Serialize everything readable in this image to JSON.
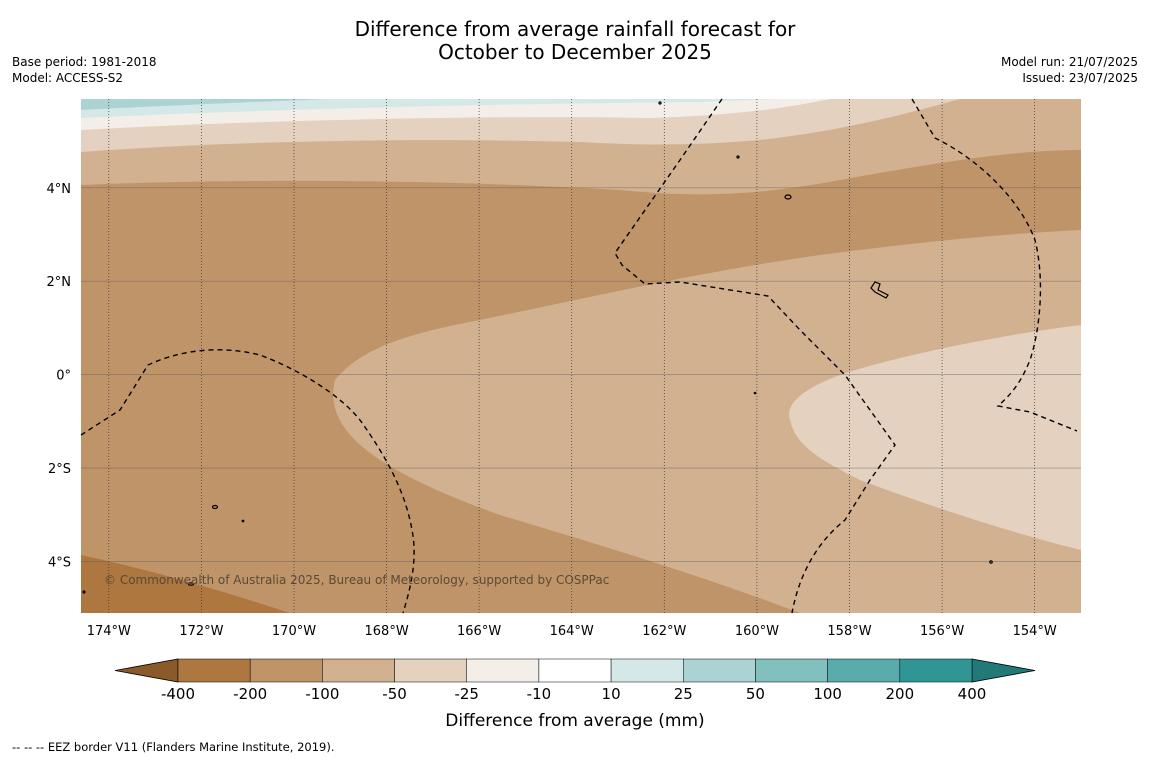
{
  "header": {
    "title_line1": "Difference from average rainfall forecast for",
    "title_line2": "October to December 2025",
    "base_period": "Base period: 1981-2018",
    "model": "Model: ACCESS-S2",
    "model_run": "Model run: 21/07/2025",
    "issued": "Issued: 23/07/2025"
  },
  "map": {
    "lon_range": [
      -174.6,
      -153.0
    ],
    "lat_range": [
      -5.1,
      5.9
    ],
    "lon_ticks": [
      {
        "v": -174,
        "label": "174°W"
      },
      {
        "v": -172,
        "label": "172°W"
      },
      {
        "v": -170,
        "label": "170°W"
      },
      {
        "v": -168,
        "label": "168°W"
      },
      {
        "v": -166,
        "label": "166°W"
      },
      {
        "v": -164,
        "label": "164°W"
      },
      {
        "v": -162,
        "label": "162°W"
      },
      {
        "v": -160,
        "label": "160°W"
      },
      {
        "v": -158,
        "label": "158°W"
      },
      {
        "v": -156,
        "label": "156°W"
      },
      {
        "v": -154,
        "label": "154°W"
      }
    ],
    "lat_ticks": [
      {
        "v": 4,
        "label": "4°N"
      },
      {
        "v": 2,
        "label": "2°N"
      },
      {
        "v": 0,
        "label": "0°"
      },
      {
        "v": -2,
        "label": "2°S"
      },
      {
        "v": -4,
        "label": "4°S"
      }
    ],
    "copyright": "© Commonwealth of Australia 2025, Bureau of Meteorology, supported by COSPPac",
    "fill_colors": {
      "lt_-400": "#8a5a2a",
      "-400_-200": "#ad773f",
      "-200_-100": "#c09469",
      "-100_-50": "#d2b191",
      "-50_-25": "#e4d1bf",
      "-25_-10": "#f3eee8",
      "-10_10": "#ffffff",
      "10_25": "#d5e8e8",
      "25_50": "#acd3d4",
      "50_100": "#82bfbf",
      "100_200": "#5aabab",
      "200_400": "#2f9695",
      "gt_400": "#227a78"
    }
  },
  "colorbar": {
    "labels": [
      "-400",
      "-200",
      "-100",
      "-50",
      "-25",
      "-10",
      "10",
      "25",
      "50",
      "100",
      "200",
      "400"
    ],
    "low_extend_color": "#8a5a2a",
    "high_extend_color": "#227a78",
    "colors": [
      "#ad773f",
      "#c09469",
      "#d2b191",
      "#e4d1bf",
      "#f3eee8",
      "#ffffff",
      "#d5e8e8",
      "#acd3d4",
      "#82bfbf",
      "#5aabab",
      "#2f9695"
    ],
    "label": "Difference from average (mm)"
  },
  "footnote": "--  --  -- EEZ border V11 (Flanders Marine Institute, 2019)."
}
